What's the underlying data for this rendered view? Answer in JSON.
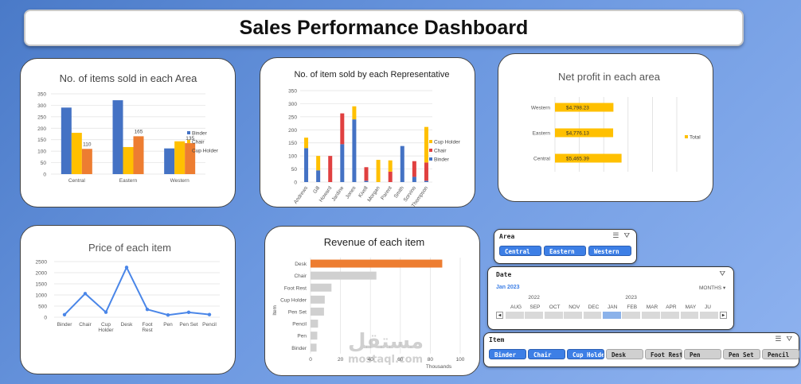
{
  "dashboard": {
    "title": "Sales Performance Dashboard"
  },
  "colors": {
    "binder": "#4472c4",
    "chair": "#ffc000",
    "cup_holder": "#ed7d31",
    "red": "#e04040",
    "net_profit": "#ffc000",
    "revenue_highlight": "#ed7d31",
    "revenue_bar": "#d0d0d0",
    "slicer_on": "#3d7fe6",
    "slicer_off": "#d0d0d0"
  },
  "chart_data": [
    {
      "id": "items-by-area",
      "type": "bar",
      "title": "No. of items sold in each Area",
      "categories": [
        "Central",
        "Eastern",
        "Western"
      ],
      "series": [
        {
          "name": "Binder",
          "values": [
            290,
            322,
            112
          ]
        },
        {
          "name": "Chair",
          "values": [
            180,
            118,
            143
          ]
        },
        {
          "name": "Cup Holder",
          "values": [
            110,
            165,
            135
          ]
        }
      ],
      "data_labels": [
        {
          "category": "Central",
          "series": "Cup Holder",
          "text": "110"
        },
        {
          "category": "Eastern",
          "series": "Cup Holder",
          "text": "165"
        },
        {
          "category": "Western",
          "series": "Cup Holder",
          "text": "135"
        }
      ],
      "yticks": [
        "0",
        "50",
        "100",
        "150",
        "200",
        "250",
        "300",
        "350"
      ],
      "ylim": [
        0,
        350
      ],
      "legend": "right",
      "grid": true
    },
    {
      "id": "items-by-rep",
      "type": "bar",
      "stacked": true,
      "title": "No. of item sold by each Representative",
      "categories": [
        "Andrews",
        "Gill",
        "Howard",
        "Jardine",
        "Jones",
        "Kivell",
        "Morgan",
        "Parent",
        "Smith",
        "Sorvino",
        "Thompson"
      ],
      "series": [
        {
          "name": "Binder",
          "values": [
            130,
            45,
            0,
            145,
            240,
            5,
            0,
            0,
            138,
            20,
            5
          ]
        },
        {
          "name": "Chair",
          "values": [
            0,
            0,
            100,
            118,
            0,
            52,
            0,
            40,
            0,
            60,
            70
          ]
        },
        {
          "name": "Cup Holder",
          "values": [
            40,
            55,
            0,
            0,
            50,
            0,
            85,
            43,
            0,
            0,
            136
          ]
        }
      ],
      "yticks": [
        "0",
        "50",
        "100",
        "150",
        "200",
        "250",
        "300",
        "350"
      ],
      "ylim": [
        0,
        350
      ],
      "legend": "right",
      "grid": true
    },
    {
      "id": "net-profit-by-area",
      "type": "bar",
      "orientation": "horizontal",
      "title": "Net profit in each area",
      "categories": [
        "Western",
        "Eastern",
        "Central"
      ],
      "series": [
        {
          "name": "Total",
          "values": [
            4798.23,
            4776.13,
            5465.39
          ]
        }
      ],
      "data_labels": [
        "$4,798.23",
        "$4,776.13",
        "$5,465.39"
      ],
      "xlim": [
        0,
        10000
      ],
      "legend": "right",
      "grid": true
    },
    {
      "id": "price-by-item",
      "type": "line",
      "title": "Price of each item",
      "categories": [
        "Binder",
        "Chair",
        "Cup Holder",
        "Desk",
        "Foot Rest",
        "Pen",
        "Pen Set",
        "Pencil"
      ],
      "category_lines": [
        [
          "Binder"
        ],
        [
          "Chair"
        ],
        [
          "Cup",
          "Holder"
        ],
        [
          "Desk"
        ],
        [
          "Foot",
          "Rest"
        ],
        [
          "Pen"
        ],
        [
          "Pen Set"
        ],
        [
          "Pencil"
        ]
      ],
      "series": [
        {
          "values": [
            115,
            1060,
            225,
            2240,
            350,
            100,
            220,
            120
          ]
        }
      ],
      "yticks": [
        "0",
        "500",
        "1000",
        "1500",
        "2000",
        "2500"
      ],
      "ylim": [
        0,
        2500
      ],
      "grid": true
    },
    {
      "id": "revenue-by-item",
      "type": "bar",
      "orientation": "horizontal",
      "title": "Revenue of each item",
      "ylabel": "Item",
      "xlabel": "Thousands",
      "categories": [
        "Desk",
        "Chair",
        "Foot Rest",
        "Cup Holder",
        "Pen Set",
        "Pencil",
        "Pen",
        "Binder"
      ],
      "series": [
        {
          "values": [
            88,
            44,
            14,
            9.5,
            9,
            5,
            4.5,
            4
          ]
        }
      ],
      "xticks": [
        "0",
        "20",
        "40",
        "60",
        "80",
        "100"
      ],
      "xlim": [
        0,
        100
      ],
      "grid": true
    }
  ],
  "slicers": {
    "area": {
      "title": "Area",
      "items": [
        {
          "label": "Central",
          "selected": true
        },
        {
          "label": "Eastern",
          "selected": true
        },
        {
          "label": "Western",
          "selected": true
        }
      ]
    },
    "date": {
      "title": "Date",
      "range_label": "Jan 2023",
      "level": "MONTHS",
      "years": [
        "2022",
        "2023"
      ],
      "months": [
        "AUG",
        "SEP",
        "OCT",
        "NOV",
        "DEC",
        "JAN",
        "FEB",
        "MAR",
        "APR",
        "MAY",
        "JU"
      ],
      "selected_month": "JAN"
    },
    "item": {
      "title": "Item",
      "items": [
        {
          "label": "Binder",
          "selected": true
        },
        {
          "label": "Chair",
          "selected": true
        },
        {
          "label": "Cup Holder",
          "selected": true
        },
        {
          "label": "Desk",
          "selected": false
        },
        {
          "label": "Foot Rest",
          "selected": false
        },
        {
          "label": "Pen",
          "selected": false
        },
        {
          "label": "Pen Set",
          "selected": false
        },
        {
          "label": "Pencil",
          "selected": false
        }
      ]
    }
  },
  "watermark": {
    "arabic": "مستقل",
    "latin": "mostaql.com"
  }
}
